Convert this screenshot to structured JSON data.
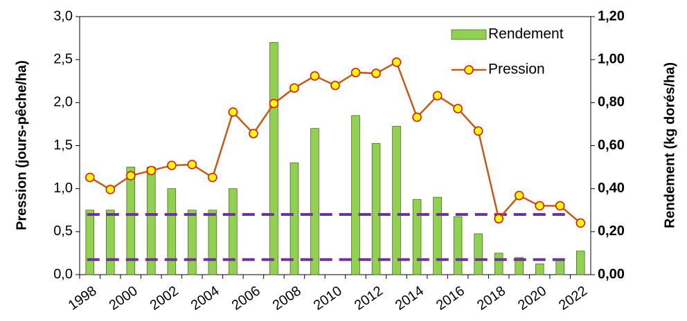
{
  "chart_data": {
    "type": "bar_line",
    "categories": [
      "1998",
      null,
      "2000",
      null,
      "2002",
      null,
      "2004",
      null,
      "2006",
      null,
      "2008",
      null,
      "2010",
      null,
      "2012",
      null,
      "2014",
      null,
      "2016",
      null,
      "2018",
      null,
      "2020",
      null,
      "2022"
    ],
    "series": [
      {
        "name": "Rendement",
        "type": "bar",
        "axis": "y2",
        "color": "#92d050",
        "values": [
          0.3,
          0.3,
          0.5,
          0.5,
          0.4,
          0.3,
          0.3,
          0.4,
          null,
          1.08,
          0.52,
          0.68,
          null,
          0.74,
          0.61,
          0.69,
          0.35,
          0.36,
          0.27,
          0.19,
          0.1,
          0.08,
          0.05,
          0.07,
          0.11
        ]
      },
      {
        "name": "Pression",
        "type": "line",
        "axis": "y",
        "color": "#c55a11",
        "marker_fill": "#ffff00",
        "marker_edge": "#ff0000",
        "values": [
          1.13,
          0.99,
          1.15,
          1.21,
          1.27,
          1.28,
          1.13,
          1.89,
          1.64,
          1.99,
          2.17,
          2.31,
          2.2,
          2.35,
          2.34,
          2.47,
          1.83,
          2.08,
          1.93,
          1.67,
          0.65,
          0.92,
          0.8,
          0.8,
          0.6
        ]
      }
    ],
    "reference_lines": [
      {
        "value": 0.28,
        "axis": "y2",
        "color": "#7030a0"
      },
      {
        "value": 0.07,
        "axis": "y2",
        "color": "#7030a0"
      }
    ],
    "ylabel": "Pression (jours-pêche/ha)",
    "y2label": "Rendement (kg dorés/ha)",
    "ylim": [
      0,
      3
    ],
    "yticks": [
      {
        "value": 0,
        "label": "0,0"
      },
      {
        "value": 0.5,
        "label": "0,5"
      },
      {
        "value": 1,
        "label": "1,0"
      },
      {
        "value": 1.5,
        "label": "1,5"
      },
      {
        "value": 2,
        "label": "2,0"
      },
      {
        "value": 2.5,
        "label": "2,5"
      },
      {
        "value": 3,
        "label": "3,0"
      }
    ],
    "y2lim": [
      0,
      1.2
    ],
    "y2ticks": [
      {
        "value": 0,
        "label": "0,00"
      },
      {
        "value": 0.2,
        "label": "0,20"
      },
      {
        "value": 0.4,
        "label": "0,40"
      },
      {
        "value": 0.6,
        "label": "0,60"
      },
      {
        "value": 0.8,
        "label": "0,80"
      },
      {
        "value": 1,
        "label": "1,00"
      },
      {
        "value": 1.2,
        "label": "1,20"
      }
    ],
    "legend": "upper right"
  }
}
